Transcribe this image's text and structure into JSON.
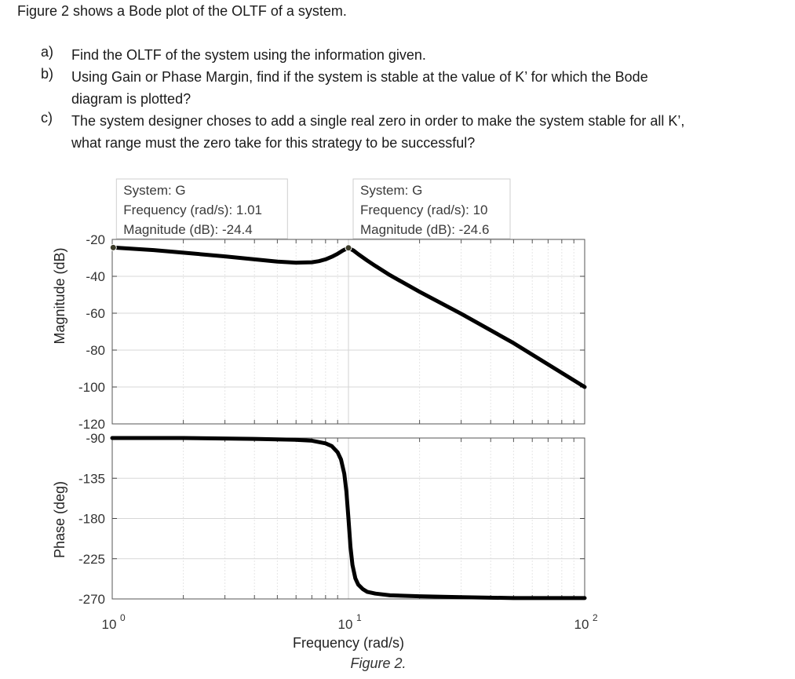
{
  "problem": {
    "intro": "Figure 2 shows a Bode plot of the OLTF of a system.",
    "questions": [
      {
        "label": "a)",
        "lines": [
          "Find the OLTF of the system using the information given."
        ]
      },
      {
        "label": "b)",
        "lines": [
          "Using Gain or Phase Margin, find if the system is stable at the value of K’ for which the Bode",
          "diagram is plotted?"
        ]
      },
      {
        "label": "c)",
        "lines": [
          "The system designer choses to add a single real zero in order to make the system stable for all K’,",
          "what range must the zero take for this strategy to be successful?"
        ]
      }
    ]
  },
  "chart_data": [
    {
      "type": "line",
      "panel": "magnitude",
      "ylabel": "Magnitude (dB)",
      "xscale": "log",
      "xlim": [
        1,
        100
      ],
      "ylim": [
        -120,
        -20
      ],
      "yticks": [
        -20,
        -40,
        -60,
        -80,
        -100,
        -120
      ],
      "grid": true,
      "series": [
        {
          "x": [
            1,
            1.5,
            2,
            3,
            4,
            5,
            6,
            7,
            7.5,
            8,
            8.5,
            9,
            9.5,
            10,
            10.5,
            11,
            12,
            13,
            15,
            20,
            30,
            50,
            100
          ],
          "y": [
            -24.4,
            -25.8,
            -27.2,
            -29.2,
            -30.8,
            -32.0,
            -32.6,
            -32.4,
            -31.8,
            -30.8,
            -29.4,
            -27.8,
            -25.9,
            -24.6,
            -26.0,
            -28.0,
            -31.4,
            -34.4,
            -39.4,
            -48.4,
            -60.3,
            -76.2,
            -100.0
          ]
        }
      ],
      "datatips": [
        {
          "system": "System: G",
          "frequency": "Frequency (rad/s): 1.01",
          "magnitude": "Magnitude (dB): -24.4",
          "x": 1.01,
          "y": -24.4
        },
        {
          "system": "System: G",
          "frequency": "Frequency (rad/s): 10",
          "magnitude": "Magnitude (dB): -24.6",
          "x": 10,
          "y": -24.6
        }
      ]
    },
    {
      "type": "line",
      "panel": "phase",
      "ylabel": "Phase (deg)",
      "xlabel": "Frequency (rad/s)",
      "xscale": "log",
      "xlim": [
        1,
        100
      ],
      "ylim": [
        -270,
        -90
      ],
      "yticks": [
        -90,
        -135,
        -180,
        -225,
        -270
      ],
      "xticks": [
        {
          "value": 1,
          "base": "10",
          "exp": "0"
        },
        {
          "value": 10,
          "base": "10",
          "exp": "1"
        },
        {
          "value": 100,
          "base": "10",
          "exp": "2"
        }
      ],
      "grid": true,
      "series": [
        {
          "x": [
            1,
            2,
            4,
            6,
            7,
            8,
            8.5,
            9,
            9.3,
            9.6,
            9.8,
            10,
            10.2,
            10.4,
            10.7,
            11,
            11.5,
            12,
            13,
            15,
            20,
            30,
            50,
            100
          ],
          "y": [
            -90,
            -90,
            -91,
            -92,
            -93,
            -96,
            -99,
            -106,
            -114,
            -130,
            -150,
            -180,
            -212,
            -232,
            -247,
            -254,
            -259,
            -262,
            -264,
            -266,
            -267,
            -268,
            -269,
            -269
          ]
        }
      ]
    }
  ],
  "caption": "Figure 2."
}
